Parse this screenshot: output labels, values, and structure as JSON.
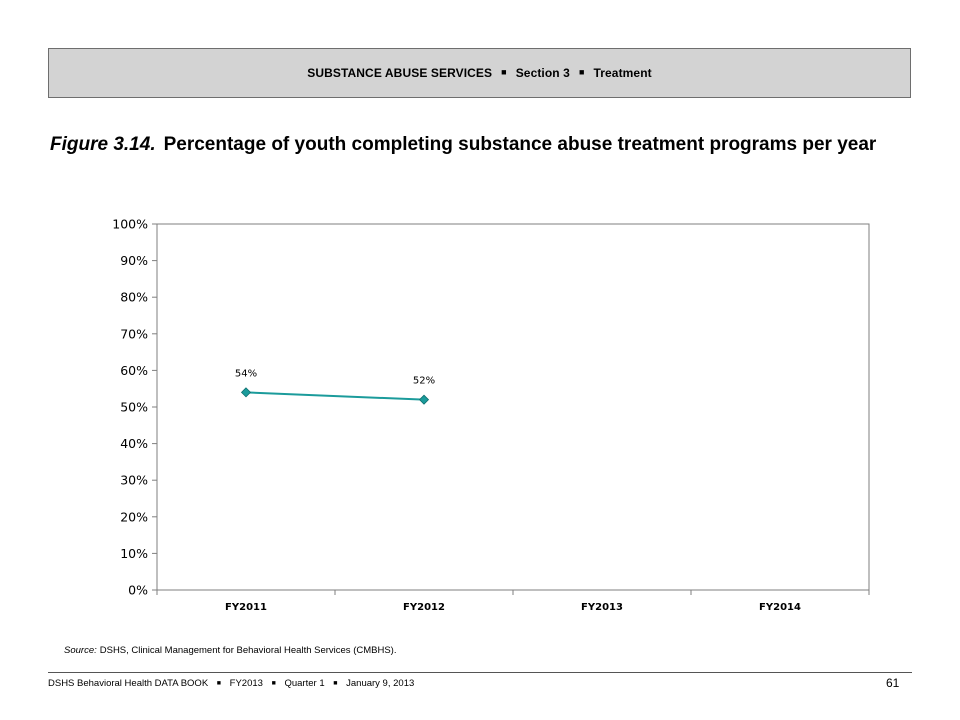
{
  "header": {
    "part1": "SUBSTANCE ABUSE SERVICES",
    "part2": "Section 3",
    "part3": "Treatment",
    "separator": "■"
  },
  "figure": {
    "number": "Figure 3.14.",
    "title": "Percentage of youth completing substance abuse treatment programs per year"
  },
  "chart_data": {
    "type": "line",
    "categories": [
      "FY2011",
      "FY2012",
      "FY2013",
      "FY2014"
    ],
    "series": [
      {
        "values": [
          54,
          52,
          null,
          null
        ],
        "data_labels": [
          "54%",
          "52%",
          "",
          ""
        ],
        "color": "#1b9b9b",
        "marker": "diamond"
      }
    ],
    "y_ticks": [
      "0%",
      "10%",
      "20%",
      "30%",
      "40%",
      "50%",
      "60%",
      "70%",
      "80%",
      "90%",
      "100%"
    ],
    "ylim": [
      0,
      100
    ],
    "grid": false,
    "legend": "none"
  },
  "source": {
    "label": "Source:",
    "text": "DSHS, Clinical Management for Behavioral Health Services (CMBHS)."
  },
  "footer": {
    "book": "DSHS Behavioral Health DATA BOOK",
    "fiscal_year": "FY2013",
    "quarter": "Quarter 1",
    "date": "January 9, 2013",
    "separator": "■",
    "page_number": "61"
  }
}
